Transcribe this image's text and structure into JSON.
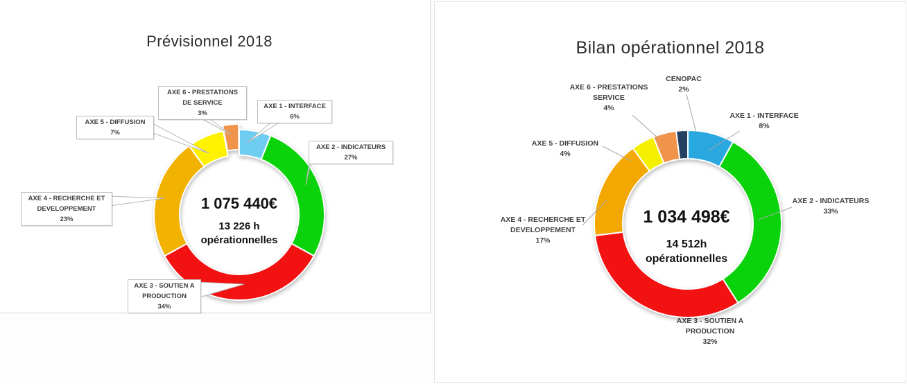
{
  "chart_data": [
    {
      "type": "pie",
      "subtype": "donut",
      "title": "Prévisionnel 2018",
      "center_value": "1 075 440€",
      "center_sub": [
        "13 226 h",
        "opérationnelles"
      ],
      "categories": [
        "AXE 1 - INTERFACE",
        "AXE 2 - INDICATEURS",
        "AXE 3 - SOUTIEN A PRODUCTION",
        "AXE 4 - RECHERCHE ET DEVELOPPEMENT",
        "AXE 5 - DIFFUSION",
        "AXE 6 - PRESTATIONS DE SERVICE"
      ],
      "values": [
        6,
        27,
        34,
        23,
        7,
        3
      ],
      "unit": "%",
      "colors": [
        "#6FCDF1",
        "#0BD30B",
        "#F31212",
        "#F2B200",
        "#FFF200",
        "#F0944C"
      ],
      "label_lines": [
        [
          "AXE 1 - INTERFACE"
        ],
        [
          "AXE 2 - INDICATEURS"
        ],
        [
          "AXE 3 - SOUTIEN A",
          "PRODUCTION"
        ],
        [
          "AXE 4 - RECHERCHE ET",
          "DEVELOPPEMENT"
        ],
        [
          "AXE 5 - DIFFUSION"
        ],
        [
          "AXE 6 - PRESTATIONS",
          "DE SERVICE"
        ]
      ],
      "label_style": "boxed-callout",
      "start_angle_deg": 0,
      "direction": "clockwise",
      "legend": "none"
    },
    {
      "type": "pie",
      "subtype": "donut",
      "title": "Bilan opérationnel 2018",
      "center_value": "1 034 498€",
      "center_sub": [
        "14 512h",
        "opérationnelles"
      ],
      "categories": [
        "AXE 1 - INTERFACE",
        "AXE 2 - INDICATEURS",
        "AXE 3 - SOUTIEN A PRODUCTION",
        "AXE 4 - RECHERCHE ET DEVELOPPEMENT",
        "AXE 5 - DIFFUSION",
        "AXE 6 - PRESTATIONS SERVICE",
        "CENOPAC"
      ],
      "values": [
        8,
        33,
        32,
        17,
        4,
        4,
        2
      ],
      "unit": "%",
      "colors": [
        "#29A8E0",
        "#0BD30B",
        "#F31212",
        "#F2A800",
        "#F5F000",
        "#F0944C",
        "#243F60"
      ],
      "label_lines": [
        [
          "AXE 1 - INTERFACE"
        ],
        [
          "AXE 2 - INDICATEURS"
        ],
        [
          "AXE 3 - SOUTIEN A",
          "PRODUCTION"
        ],
        [
          "AXE 4 - RECHERCHE ET",
          "DEVELOPPEMENT"
        ],
        [
          "AXE 5 - DIFFUSION"
        ],
        [
          "AXE 6 - PRESTATIONS",
          "SERVICE"
        ],
        [
          "CENOPAC"
        ]
      ],
      "label_style": "plain-line",
      "start_angle_deg": 0,
      "direction": "clockwise",
      "legend": "none"
    }
  ]
}
